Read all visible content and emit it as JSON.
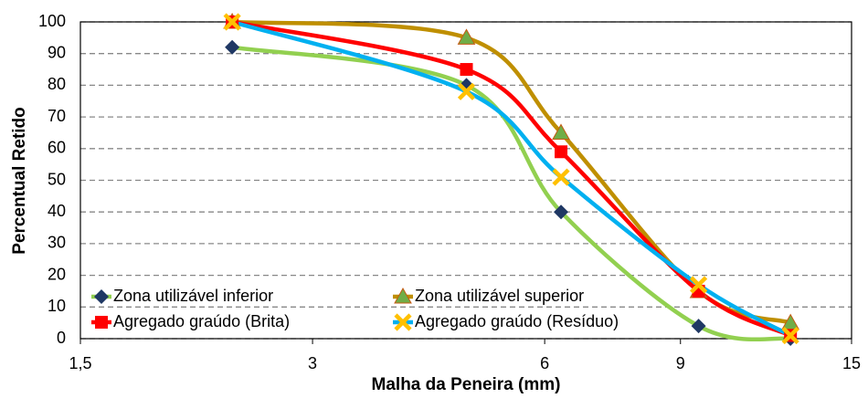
{
  "chart_data": {
    "type": "line",
    "x_label": "Malha da Peneira (mm)",
    "y_label": "Percentual Retido",
    "x": [
      2.36,
      4.75,
      6.3,
      9.5,
      12.5
    ],
    "x_scale": "log",
    "xlim": [
      1.5,
      15
    ],
    "xticks": [
      {
        "value": 1.5,
        "label": "1,5"
      },
      3,
      6,
      9,
      15
    ],
    "ylim": [
      0,
      100
    ],
    "yticks": [
      0,
      10,
      20,
      30,
      40,
      50,
      60,
      70,
      80,
      90,
      100
    ],
    "grid": true,
    "smooth": true,
    "legend": "bottom-left",
    "series": [
      {
        "name": "Zona utilizável inferior",
        "color": "#92d050",
        "marker": "diamond",
        "marker_color": "#1f3864",
        "values": [
          92,
          80,
          40,
          4,
          0
        ]
      },
      {
        "name": "Zona utilizável superior",
        "color": "#bf8f00",
        "marker": "triangle",
        "marker_color": "#70ad47",
        "values": [
          100,
          95,
          65,
          15,
          5
        ]
      },
      {
        "name": "Agregado graúdo (Brita)",
        "color": "#ff0000",
        "marker": "square",
        "marker_color": "#ff0000",
        "values": [
          100,
          85,
          59,
          15,
          1
        ]
      },
      {
        "name": "Agregado graúdo (Resíduo)",
        "color": "#00b0f0",
        "marker": "cross",
        "marker_color": "#ffc000",
        "values": [
          100,
          78,
          51,
          17,
          1
        ]
      }
    ]
  }
}
